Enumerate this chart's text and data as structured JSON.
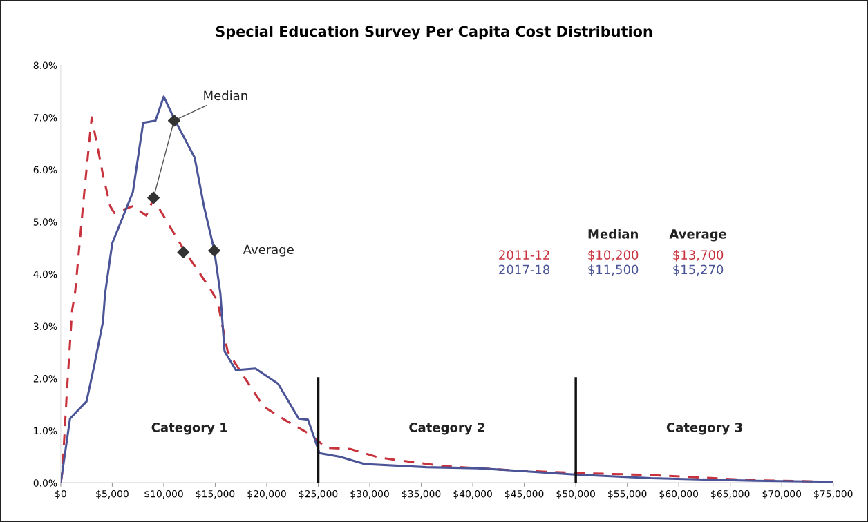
{
  "chart_data": {
    "type": "line",
    "title": "Special Education Survey Per Capita Cost Distribution",
    "xlim": [
      0,
      75000
    ],
    "xticks": [
      {
        "value": 0,
        "label": "$0"
      },
      {
        "value": 5000,
        "label": "$5,000"
      },
      {
        "value": 10000,
        "label": "$10,000"
      },
      {
        "value": 15000,
        "label": "$15,000"
      },
      {
        "value": 20000,
        "label": "$20,000"
      },
      {
        "value": 25000,
        "label": "$25,000"
      },
      {
        "value": 30000,
        "label": "$30,000"
      },
      {
        "value": 35000,
        "label": "$35,000"
      },
      {
        "value": 40000,
        "label": "$40,000"
      },
      {
        "value": 45000,
        "label": "$45,000"
      },
      {
        "value": 50000,
        "label": "$50,000"
      },
      {
        "value": 55000,
        "label": "$55,000"
      },
      {
        "value": 60000,
        "label": "$60,000"
      },
      {
        "value": 65000,
        "label": "$65,000"
      },
      {
        "value": 70000,
        "label": "$70,000"
      },
      {
        "value": 75000,
        "label": "$75,000"
      }
    ],
    "ylim": [
      0,
      8
    ],
    "yticks": [
      {
        "value": 0,
        "label": "0.0%"
      },
      {
        "value": 1,
        "label": "1.0%"
      },
      {
        "value": 2,
        "label": "2.0%"
      },
      {
        "value": 3,
        "label": "3.0%"
      },
      {
        "value": 4,
        "label": "4.0%"
      },
      {
        "value": 5,
        "label": "5.0%"
      },
      {
        "value": 6,
        "label": "6.0%"
      },
      {
        "value": 7,
        "label": "7.0%"
      },
      {
        "value": 8,
        "label": "8.0%"
      }
    ],
    "grid": false,
    "series": [
      {
        "name": "2011-12",
        "color": "#c8323c",
        "line_style": "dashed",
        "marker": "none",
        "x": [
          0,
          150,
          600,
          1100,
          1400,
          2300,
          3000,
          4100,
          4800,
          5200,
          7000,
          8300,
          9000,
          10500,
          12100,
          14400,
          15200,
          16200,
          17500,
          19700,
          21900,
          24200,
          25800,
          28100,
          30800,
          32500,
          37200,
          43900,
          49900,
          57300,
          67400,
          75000
        ],
        "values": [
          0,
          0.2,
          1.76,
          3.3,
          3.66,
          5.6,
          7.0,
          5.9,
          5.3,
          5.17,
          5.3,
          5.12,
          5.44,
          4.94,
          4.42,
          3.75,
          3.49,
          2.52,
          2.12,
          1.46,
          1.19,
          0.93,
          0.67,
          0.65,
          0.49,
          0.44,
          0.32,
          0.24,
          0.19,
          0.15,
          0.05,
          0.02
        ]
      },
      {
        "name": "2017-18",
        "color": "#4a5496",
        "line_style": "solid",
        "marker": "none",
        "x": [
          0,
          900,
          2500,
          3200,
          4100,
          4300,
          5000,
          7000,
          8000,
          9200,
          10000,
          11000,
          13000,
          13900,
          14900,
          15500,
          15900,
          17000,
          18900,
          21100,
          23100,
          24000,
          24900,
          25100,
          27100,
          29500,
          35500,
          40500,
          49900,
          57300,
          67400,
          75000
        ],
        "values": [
          0,
          1.23,
          1.56,
          2.2,
          3.09,
          3.62,
          4.59,
          5.57,
          6.9,
          6.94,
          7.4,
          6.98,
          6.23,
          5.3,
          4.46,
          3.62,
          2.52,
          2.16,
          2.19,
          1.9,
          1.23,
          1.21,
          0.7,
          0.57,
          0.5,
          0.36,
          0.3,
          0.28,
          0.16,
          0.09,
          0.04,
          0.02
        ]
      },
      {
        "type": "scatter",
        "color": "#333333",
        "marker": "diamond",
        "x": [
          9000,
          11000
        ],
        "values": [
          5.46,
          6.94
        ]
      },
      {
        "type": "scatter",
        "color": "#333333",
        "marker": "diamond",
        "x": [
          11900,
          14900
        ],
        "values": [
          4.42,
          4.45
        ]
      }
    ],
    "ref_lines": [
      {
        "axis": "x",
        "value": 25000,
        "color": "#111111"
      },
      {
        "axis": "x",
        "value": 50000,
        "color": "#111111"
      }
    ],
    "annotations": [
      {
        "text": "Median",
        "x": 11000,
        "y": 6.94
      },
      "Average",
      "Category 1",
      "Category 2",
      "Category 3",
      "Median",
      "Average",
      "$10,200",
      "$13,700",
      "$11,500",
      "$15,270"
    ]
  }
}
